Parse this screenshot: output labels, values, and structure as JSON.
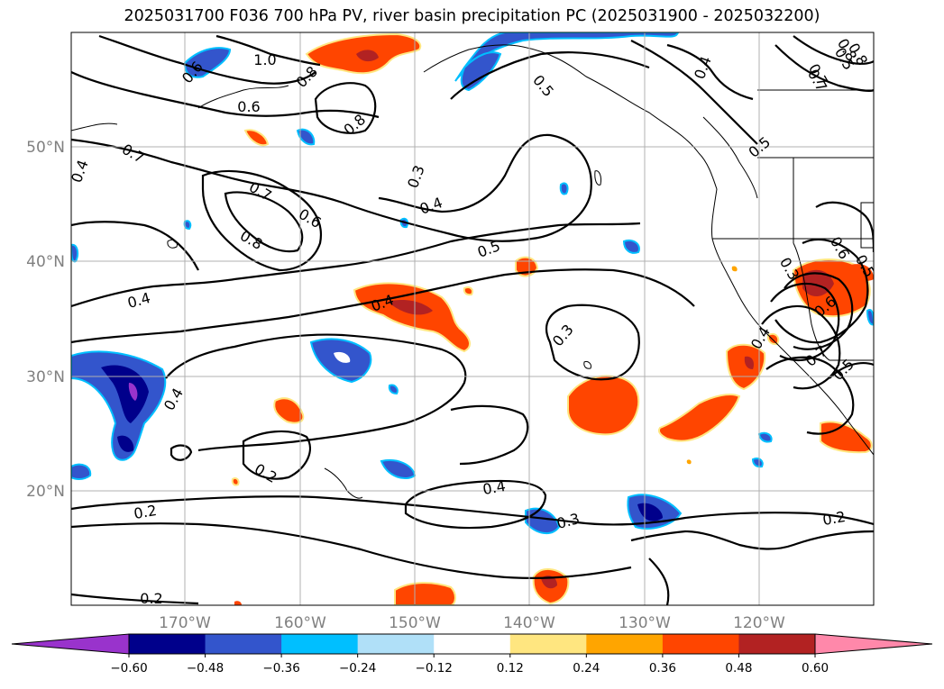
{
  "title": "2025031700 F036 700 hPa PV, river basin precipitation PC (2025031900 - 2025032200)",
  "map": {
    "lat_labels": [
      "50°N",
      "40°N",
      "30°N",
      "20°N"
    ],
    "lon_labels": [
      "170°W",
      "160°W",
      "150°W",
      "140°W",
      "130°W",
      "120°W"
    ],
    "gridlines": true
  },
  "contour_labels": [
    "1.0",
    "0.5",
    "0.6",
    "0.8",
    "0.4",
    "0.8",
    "0.3",
    "0.7",
    "0.7",
    "0.6",
    "0.8",
    "0.4",
    "0.5",
    "0.4",
    "0.3",
    "0.4",
    "0.4",
    "0.2",
    "0.2",
    "0.4",
    "0.3",
    "0.2",
    "0.2",
    "0.3",
    "0.4",
    "0.5",
    "0.6",
    "0.7",
    "0.8",
    "0.5",
    "0.4",
    "0.6",
    "0.7",
    "0.5",
    "0.8",
    "0.7",
    "0.6",
    "0.5"
  ],
  "colorbar": {
    "ticks": [
      "−0.60",
      "−0.48",
      "−0.36",
      "−0.24",
      "−0.12",
      "0.12",
      "0.24",
      "0.36",
      "0.48",
      "0.60"
    ],
    "colors": [
      "#9933cc",
      "#00008b",
      "#3355cc",
      "#00bfff",
      "#b0e0f8",
      "#ffffff",
      "#ffe680",
      "#ffa500",
      "#ff4500",
      "#b22222",
      "#ff88aa"
    ],
    "extend": "both"
  }
}
